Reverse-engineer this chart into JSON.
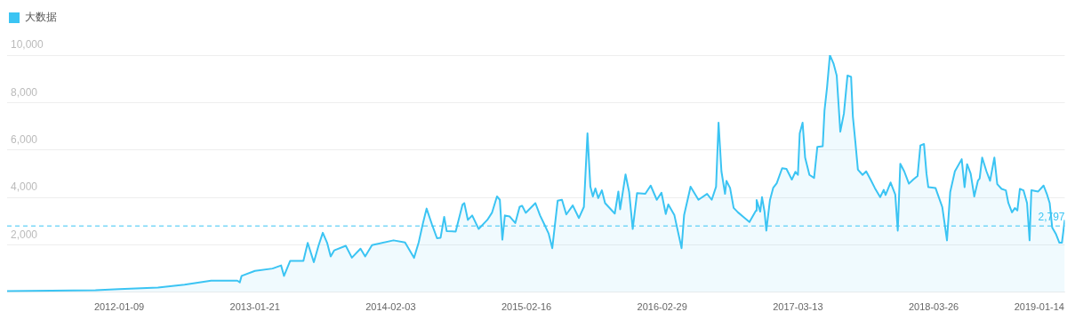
{
  "chart_data": {
    "type": "area",
    "legend": "top left",
    "grid": "y",
    "ylim": [
      0,
      10000
    ],
    "yticks": [
      {
        "value": 2000,
        "label": "2,000"
      },
      {
        "value": 4000,
        "label": "4,000"
      },
      {
        "value": 6000,
        "label": "6,000"
      },
      {
        "value": 8000,
        "label": "8,000"
      },
      {
        "value": 10000,
        "label": "10,000"
      }
    ],
    "xlim": [
      "2011-03-03",
      "2019-03-26"
    ],
    "xticks": [
      "2012-01-09",
      "2013-01-21",
      "2014-02-03",
      "2015-02-16",
      "2016-02-29",
      "2017-03-13",
      "2018-03-26",
      "2019-01-14"
    ],
    "ref_lines": [
      {
        "axis": "y",
        "value": 2797,
        "label": "2,797",
        "line_style": "dashed",
        "color": "#3bc4f3"
      }
    ],
    "x": [
      "2011-03-03",
      "2011-07-04",
      "2011-11-04",
      "2012-01-09",
      "2012-04-26",
      "2012-07-09",
      "2012-09-21",
      "2012-12-03",
      "2012-12-10",
      "2012-12-15",
      "2013-01-21",
      "2013-03-11",
      "2013-04-04",
      "2013-04-12",
      "2013-04-29",
      "2013-06-05",
      "2013-06-17",
      "2013-07-04",
      "2013-07-17",
      "2013-07-29",
      "2013-08-10",
      "2013-08-20",
      "2013-08-30",
      "2013-10-01",
      "2013-10-18",
      "2013-11-11",
      "2013-11-24",
      "2013-12-13",
      "2014-02-11",
      "2014-03-15",
      "2014-04-09",
      "2014-04-22",
      "2014-05-04",
      "2014-05-14",
      "2014-05-29",
      "2014-06-12",
      "2014-06-22",
      "2014-07-02",
      "2014-07-09",
      "2014-08-03",
      "2014-08-22",
      "2014-08-27",
      "2014-09-06",
      "2014-09-18",
      "2014-10-06",
      "2014-10-30",
      "2014-11-12",
      "2014-11-26",
      "2014-12-04",
      "2014-12-11",
      "2014-12-18",
      "2014-12-31",
      "2015-01-16",
      "2015-01-28",
      "2015-02-04",
      "2015-02-14",
      "2015-03-13",
      "2015-03-26",
      "2015-04-07",
      "2015-04-19",
      "2015-04-29",
      "2015-05-14",
      "2015-05-26",
      "2015-06-07",
      "2015-06-25",
      "2015-07-12",
      "2015-07-26",
      "2015-08-05",
      "2015-08-13",
      "2015-08-20",
      "2015-08-27",
      "2015-09-04",
      "2015-09-14",
      "2015-09-23",
      "2015-10-20",
      "2015-10-30",
      "2015-11-04",
      "2015-11-19",
      "2015-11-29",
      "2015-12-09",
      "2015-12-21",
      "2016-01-13",
      "2016-01-28",
      "2016-02-14",
      "2016-02-27",
      "2016-03-10",
      "2016-03-17",
      "2016-04-03",
      "2016-04-23",
      "2016-04-30",
      "2016-05-15",
      "2016-05-18",
      "2016-06-09",
      "2016-07-03",
      "2016-07-16",
      "2016-07-28",
      "2016-08-04",
      "2016-08-12",
      "2016-08-22",
      "2016-08-26",
      "2016-09-05",
      "2016-09-15",
      "2016-09-27",
      "2016-10-12",
      "2016-10-29",
      "2016-11-16",
      "2016-11-18",
      "2016-11-28",
      "2016-12-03",
      "2016-12-10",
      "2016-12-15",
      "2016-12-25",
      "2017-01-03",
      "2017-01-13",
      "2017-01-28",
      "2017-02-09",
      "2017-02-24",
      "2017-03-06",
      "2017-03-13",
      "2017-03-18",
      "2017-03-26",
      "2017-04-02",
      "2017-04-14",
      "2017-04-27",
      "2017-05-06",
      "2017-05-21",
      "2017-05-26",
      "2017-06-02",
      "2017-06-10",
      "2017-06-20",
      "2017-06-29",
      "2017-07-09",
      "2017-07-19",
      "2017-07-29",
      "2017-08-08",
      "2017-08-13",
      "2017-08-20",
      "2017-08-27",
      "2017-09-09",
      "2017-09-19",
      "2017-10-01",
      "2017-10-13",
      "2017-10-28",
      "2017-11-07",
      "2017-11-12",
      "2017-11-26",
      "2017-12-09",
      "2017-12-16",
      "2017-12-23",
      "2018-01-03",
      "2018-01-16",
      "2018-01-28",
      "2018-02-09",
      "2018-02-17",
      "2018-02-27",
      "2018-03-06",
      "2018-03-11",
      "2018-03-31",
      "2018-04-07",
      "2018-04-19",
      "2018-05-02",
      "2018-05-11",
      "2018-05-24",
      "2018-06-12",
      "2018-06-20",
      "2018-06-27",
      "2018-07-07",
      "2018-07-17",
      "2018-07-27",
      "2018-08-01",
      "2018-08-08",
      "2018-08-20",
      "2018-08-30",
      "2018-09-11",
      "2018-09-19",
      "2018-10-01",
      "2018-10-13",
      "2018-10-20",
      "2018-10-30",
      "2018-11-07",
      "2018-11-14",
      "2018-11-21",
      "2018-12-01",
      "2018-12-11",
      "2018-12-18",
      "2018-12-23",
      "2019-01-11",
      "2019-01-26",
      "2019-02-04",
      "2019-02-12",
      "2019-02-19",
      "2019-03-01",
      "2019-03-11",
      "2019-03-18",
      "2019-03-26"
    ],
    "series": [
      {
        "name": "大数据",
        "color": "#3bc4f3",
        "values": [
          50,
          70,
          90,
          130,
          200,
          320,
          490,
          490,
          420,
          690,
          900,
          1000,
          1130,
          690,
          1320,
          1320,
          2080,
          1270,
          1960,
          2510,
          2090,
          1510,
          1770,
          1960,
          1460,
          1840,
          1510,
          1990,
          2190,
          2100,
          1450,
          2100,
          2920,
          3530,
          2860,
          2280,
          2300,
          3180,
          2580,
          2560,
          3690,
          3760,
          3050,
          3240,
          2670,
          3050,
          3350,
          4040,
          3900,
          2220,
          3240,
          3200,
          2920,
          3600,
          3650,
          3350,
          3760,
          3240,
          2860,
          2470,
          1860,
          3860,
          3900,
          3280,
          3660,
          3130,
          3600,
          6700,
          4460,
          4040,
          4380,
          3970,
          4300,
          3760,
          3320,
          4250,
          3500,
          4970,
          4230,
          2670,
          4180,
          4150,
          4500,
          3900,
          4200,
          3300,
          3700,
          3250,
          1860,
          3250,
          4250,
          4450,
          3900,
          4150,
          3900,
          4450,
          7150,
          5100,
          4150,
          4700,
          4400,
          3560,
          3370,
          3180,
          2960,
          3440,
          3890,
          3400,
          4010,
          3400,
          2600,
          3880,
          4400,
          4600,
          5230,
          5200,
          4750,
          5080,
          4950,
          6700,
          7150,
          5680,
          4950,
          4820,
          6130,
          6160,
          7670,
          8630,
          10000,
          9650,
          9140,
          6770,
          7540,
          9140,
          9080,
          7410,
          6320,
          5170,
          4950,
          5100,
          4760,
          4400,
          4010,
          4320,
          4100,
          4630,
          4120,
          2600,
          5420,
          5100,
          4580,
          4750,
          4900,
          6190,
          6250,
          5000,
          4430,
          4400,
          4100,
          3590,
          2190,
          4230,
          5100,
          5610,
          4430,
          5400,
          5000,
          4040,
          4700,
          4800,
          5680,
          5100,
          4700,
          5680,
          4560,
          4360,
          4300,
          3760,
          3370,
          3550,
          3450,
          4360,
          4300,
          3760,
          2190,
          4300,
          4250,
          4500,
          4150,
          3760,
          2730,
          2470,
          2090,
          2090,
          3050
        ]
      }
    ]
  }
}
